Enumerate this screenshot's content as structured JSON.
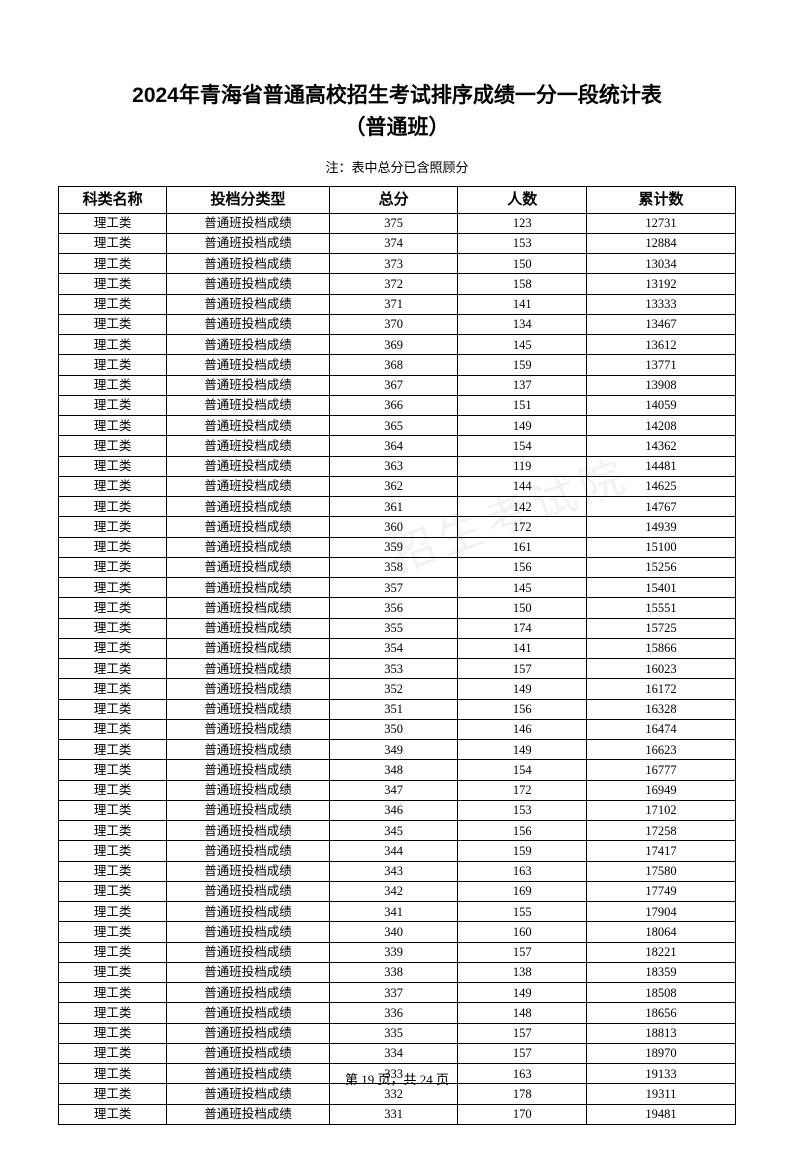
{
  "title_line1": "2024年青海省普通高校招生考试排序成绩一分一段统计表",
  "title_line2": "（普通班）",
  "note": "注：表中总分已含照顾分",
  "columns": [
    "科类名称",
    "投档分类型",
    "总分",
    "人数",
    "累计数"
  ],
  "category": "理工类",
  "score_type": "普通班投档成绩",
  "rows": [
    {
      "score": 375,
      "count": 123,
      "cum": 12731
    },
    {
      "score": 374,
      "count": 153,
      "cum": 12884
    },
    {
      "score": 373,
      "count": 150,
      "cum": 13034
    },
    {
      "score": 372,
      "count": 158,
      "cum": 13192
    },
    {
      "score": 371,
      "count": 141,
      "cum": 13333
    },
    {
      "score": 370,
      "count": 134,
      "cum": 13467
    },
    {
      "score": 369,
      "count": 145,
      "cum": 13612
    },
    {
      "score": 368,
      "count": 159,
      "cum": 13771
    },
    {
      "score": 367,
      "count": 137,
      "cum": 13908
    },
    {
      "score": 366,
      "count": 151,
      "cum": 14059
    },
    {
      "score": 365,
      "count": 149,
      "cum": 14208
    },
    {
      "score": 364,
      "count": 154,
      "cum": 14362
    },
    {
      "score": 363,
      "count": 119,
      "cum": 14481
    },
    {
      "score": 362,
      "count": 144,
      "cum": 14625
    },
    {
      "score": 361,
      "count": 142,
      "cum": 14767
    },
    {
      "score": 360,
      "count": 172,
      "cum": 14939
    },
    {
      "score": 359,
      "count": 161,
      "cum": 15100
    },
    {
      "score": 358,
      "count": 156,
      "cum": 15256
    },
    {
      "score": 357,
      "count": 145,
      "cum": 15401
    },
    {
      "score": 356,
      "count": 150,
      "cum": 15551
    },
    {
      "score": 355,
      "count": 174,
      "cum": 15725
    },
    {
      "score": 354,
      "count": 141,
      "cum": 15866
    },
    {
      "score": 353,
      "count": 157,
      "cum": 16023
    },
    {
      "score": 352,
      "count": 149,
      "cum": 16172
    },
    {
      "score": 351,
      "count": 156,
      "cum": 16328
    },
    {
      "score": 350,
      "count": 146,
      "cum": 16474
    },
    {
      "score": 349,
      "count": 149,
      "cum": 16623
    },
    {
      "score": 348,
      "count": 154,
      "cum": 16777
    },
    {
      "score": 347,
      "count": 172,
      "cum": 16949
    },
    {
      "score": 346,
      "count": 153,
      "cum": 17102
    },
    {
      "score": 345,
      "count": 156,
      "cum": 17258
    },
    {
      "score": 344,
      "count": 159,
      "cum": 17417
    },
    {
      "score": 343,
      "count": 163,
      "cum": 17580
    },
    {
      "score": 342,
      "count": 169,
      "cum": 17749
    },
    {
      "score": 341,
      "count": 155,
      "cum": 17904
    },
    {
      "score": 340,
      "count": 160,
      "cum": 18064
    },
    {
      "score": 339,
      "count": 157,
      "cum": 18221
    },
    {
      "score": 338,
      "count": 138,
      "cum": 18359
    },
    {
      "score": 337,
      "count": 149,
      "cum": 18508
    },
    {
      "score": 336,
      "count": 148,
      "cum": 18656
    },
    {
      "score": 335,
      "count": 157,
      "cum": 18813
    },
    {
      "score": 334,
      "count": 157,
      "cum": 18970
    },
    {
      "score": 333,
      "count": 163,
      "cum": 19133
    },
    {
      "score": 332,
      "count": 178,
      "cum": 19311
    },
    {
      "score": 331,
      "count": 170,
      "cum": 19481
    }
  ],
  "footer": "第 19 页，共 24 页",
  "watermark": "招生考试院"
}
